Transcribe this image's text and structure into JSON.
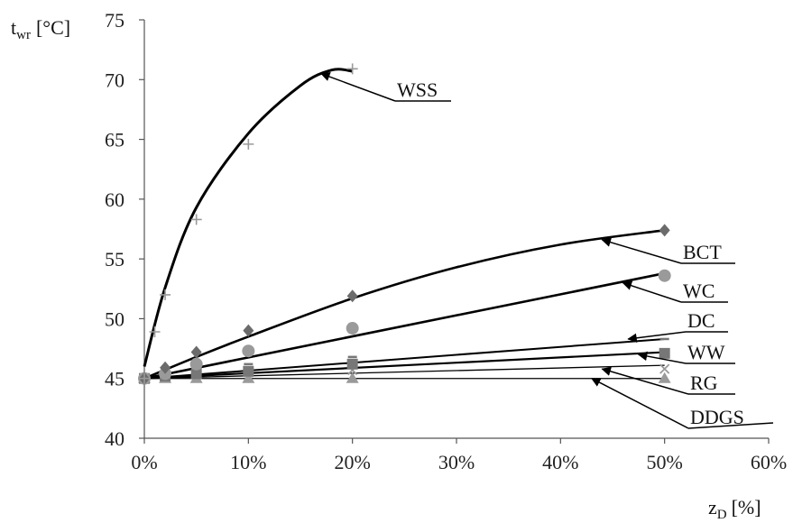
{
  "chart_data": {
    "type": "scatter",
    "ylabel_main": "t",
    "ylabel_sub": "wr",
    "ylabel_unit": "[°C]",
    "xlabel_main": "z",
    "xlabel_sub": "D",
    "xlabel_unit": "[%]",
    "xlim": [
      0,
      60
    ],
    "ylim": [
      40,
      75
    ],
    "x_ticks": [
      0,
      10,
      20,
      30,
      40,
      50,
      60
    ],
    "x_tick_labels": [
      "0%",
      "10%",
      "20%",
      "30%",
      "40%",
      "50%",
      "60%"
    ],
    "y_ticks": [
      40,
      45,
      50,
      55,
      60,
      65,
      70,
      75
    ],
    "y_tick_labels": [
      "40",
      "45",
      "50",
      "55",
      "60",
      "65",
      "70",
      "75"
    ],
    "grid": false,
    "series": [
      {
        "name": "WSS",
        "marker": "plus",
        "color": "#9a9a9a",
        "line_width": 3,
        "points": [
          [
            0,
            45
          ],
          [
            1,
            48.9
          ],
          [
            2,
            52
          ],
          [
            5,
            58.3
          ],
          [
            10,
            64.6
          ],
          [
            20,
            70.9
          ]
        ],
        "trend": [
          [
            0,
            46
          ],
          [
            2,
            52.6
          ],
          [
            5,
            59.3
          ],
          [
            10,
            65.5
          ],
          [
            15,
            69.5
          ],
          [
            18,
            70.8
          ],
          [
            20,
            70.7
          ]
        ],
        "label_anchor": [
          17,
          70.5
        ]
      },
      {
        "name": "BCT",
        "marker": "diamond",
        "color": "#6b6b6b",
        "line_width": 2.6,
        "points": [
          [
            0,
            45
          ],
          [
            2,
            45.9
          ],
          [
            5,
            47.2
          ],
          [
            10,
            49
          ],
          [
            20,
            51.9
          ],
          [
            50,
            57.4
          ]
        ],
        "trend": [
          [
            0,
            45
          ],
          [
            5,
            46.8
          ],
          [
            10,
            48.5
          ],
          [
            20,
            51.7
          ],
          [
            30,
            54.3
          ],
          [
            40,
            56.2
          ],
          [
            50,
            57.4
          ]
        ],
        "label_anchor": [
          44,
          56.6
        ]
      },
      {
        "name": "WC",
        "marker": "circle",
        "color": "#9a9a9a",
        "line_width": 2.6,
        "points": [
          [
            0,
            45
          ],
          [
            2,
            45.4
          ],
          [
            5,
            46.2
          ],
          [
            10,
            47.3
          ],
          [
            20,
            49.2
          ],
          [
            50,
            53.6
          ]
        ],
        "trend": [
          [
            0,
            45
          ],
          [
            50,
            53.8
          ]
        ],
        "label_anchor": [
          46,
          53
        ]
      },
      {
        "name": "DC",
        "marker": "dash",
        "color": "#777777",
        "line_width": 2,
        "points": [
          [
            0,
            45
          ],
          [
            2,
            45.3
          ],
          [
            5,
            45.7
          ],
          [
            10,
            46.2
          ],
          [
            20,
            46.8
          ],
          [
            50,
            48.3
          ]
        ],
        "trend": [
          [
            0,
            45
          ],
          [
            50,
            48.3
          ]
        ],
        "label_anchor": [
          46.5,
          48.3
        ]
      },
      {
        "name": "WW",
        "marker": "square",
        "color": "#777777",
        "line_width": 2.2,
        "points": [
          [
            0,
            45
          ],
          [
            2,
            45.2
          ],
          [
            5,
            45.4
          ],
          [
            10,
            45.6
          ],
          [
            20,
            46.2
          ],
          [
            50,
            47.1
          ]
        ],
        "trend": [
          [
            0,
            45
          ],
          [
            50,
            47.2
          ]
        ],
        "label_anchor": [
          47.5,
          47
        ]
      },
      {
        "name": "RG",
        "marker": "cross",
        "color": "#999999",
        "line_width": 1.3,
        "points": [
          [
            0,
            45
          ],
          [
            2,
            45.1
          ],
          [
            5,
            45.3
          ],
          [
            10,
            45.5
          ],
          [
            20,
            45.7
          ],
          [
            50,
            45.8
          ]
        ],
        "trend": [
          [
            0,
            45
          ],
          [
            50,
            46.1
          ]
        ],
        "label_anchor": [
          44,
          45.8
        ]
      },
      {
        "name": "DDGS",
        "marker": "triangle",
        "color": "#9a9a9a",
        "line_width": 1.3,
        "points": [
          [
            0,
            45
          ],
          [
            2,
            45
          ],
          [
            5,
            45
          ],
          [
            10,
            45
          ],
          [
            20,
            45
          ],
          [
            50,
            45
          ]
        ],
        "trend": [
          [
            0,
            45
          ],
          [
            50,
            45
          ]
        ],
        "label_anchor": [
          43,
          45
        ]
      }
    ]
  }
}
